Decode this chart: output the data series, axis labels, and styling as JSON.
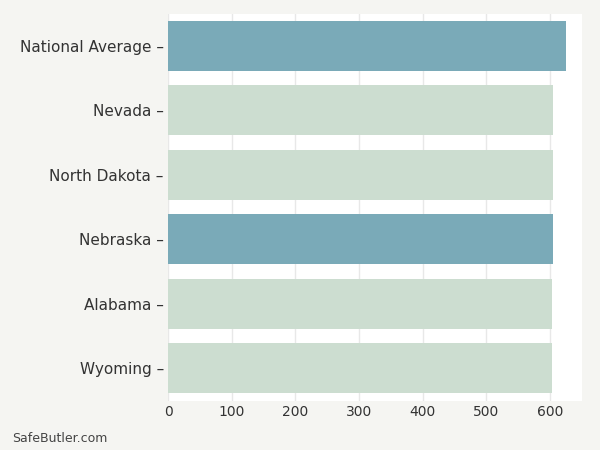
{
  "categories": [
    "Wyoming",
    "Alabama",
    "Nebraska",
    "North Dakota",
    "Nevada",
    "National Average"
  ],
  "values": [
    603,
    603,
    604,
    604,
    604,
    625
  ],
  "bar_colors": [
    "#ccddd0",
    "#ccddd0",
    "#7aaab8",
    "#ccddd0",
    "#ccddd0",
    "#7aaab8"
  ],
  "background_color": "#f5f5f2",
  "plot_bg_color": "#ffffff",
  "xlim": [
    0,
    650
  ],
  "xticks": [
    0,
    100,
    200,
    300,
    400,
    500,
    600
  ],
  "grid_color": "#e8e8e8",
  "bar_height": 0.78,
  "label_fontsize": 11,
  "tick_fontsize": 10,
  "watermark": "SafeButler.com",
  "watermark_fontsize": 9
}
